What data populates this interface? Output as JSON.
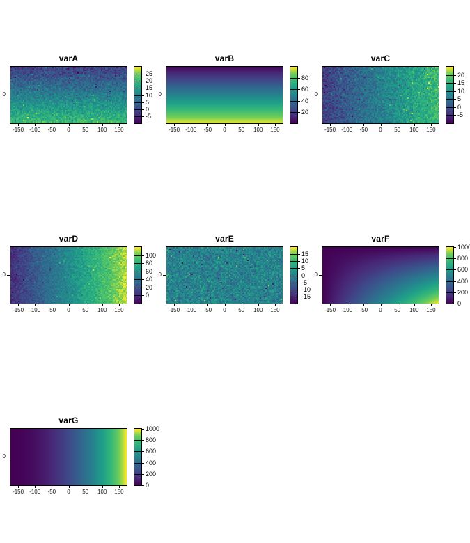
{
  "chart_data": {
    "type": "heatmap",
    "figure_background": "#ffffff",
    "colormap": {
      "name": "viridis",
      "stops": [
        "#440154",
        "#482878",
        "#3e4a89",
        "#31688e",
        "#26828e",
        "#1f9e89",
        "#35b779",
        "#6ece58",
        "#fde725"
      ]
    },
    "x_axis": {
      "tick_labels": [
        "-150",
        "-100",
        "-50",
        "0",
        "50",
        "100",
        "150"
      ],
      "tick_values": [
        -150,
        -100,
        -50,
        0,
        50,
        100,
        150
      ],
      "range": [
        -175,
        175
      ]
    },
    "y_axis": {
      "tick_label": "0"
    },
    "panels": [
      {
        "id": "varA",
        "title": "varA",
        "row": 0,
        "col": 0,
        "type": "heatmap",
        "color_range": [
          -10,
          30
        ],
        "colorbar_ticks": [
          25,
          20,
          15,
          10,
          5,
          0,
          -5
        ],
        "field": {
          "kind": "vgrad",
          "from": -2,
          "to": 21,
          "noise": 6
        },
        "description": "noisy vertical gradient, low (dark) at top to ~20-25 (green-yellow) at bottom"
      },
      {
        "id": "varB",
        "title": "varB",
        "row": 0,
        "col": 1,
        "type": "heatmap",
        "color_range": [
          0,
          100
        ],
        "colorbar_ticks": [
          80,
          60,
          40,
          20
        ],
        "field": {
          "kind": "vgrad",
          "from": 2,
          "to": 98,
          "noise": 0
        },
        "description": "smooth vertical gradient, ~0 (dark purple) at top to ~100 (yellow) at bottom"
      },
      {
        "id": "varC",
        "title": "varC",
        "row": 0,
        "col": 2,
        "type": "heatmap",
        "color_range": [
          -10,
          25
        ],
        "colorbar_ticks": [
          20,
          15,
          10,
          5,
          0,
          -5
        ],
        "field": {
          "kind": "hgrad",
          "from": -3,
          "to": 17,
          "noise": 5.5
        },
        "description": "noisy horizontal gradient, low (dark) at left to ~17-20 (green-yellow) at right"
      },
      {
        "id": "varD",
        "title": "varD",
        "row": 1,
        "col": 0,
        "type": "heatmap",
        "color_range": [
          -20,
          120
        ],
        "colorbar_ticks": [
          100,
          80,
          60,
          40,
          20,
          0
        ],
        "field": {
          "kind": "hgrad",
          "from": 0,
          "to": 112,
          "noise": 15
        },
        "description": "noisy horizontal gradient, ~0 (dark purple) at left to ~110 (yellow) at right"
      },
      {
        "id": "varE",
        "title": "varE",
        "row": 1,
        "col": 1,
        "type": "heatmap",
        "color_range": [
          -20,
          20
        ],
        "colorbar_ticks": [
          15,
          10,
          5,
          0,
          -5,
          -10,
          -15
        ],
        "field": {
          "kind": "noise",
          "from": 0,
          "to": 0,
          "noise": 8.5
        },
        "description": "pure noise centered at 0 (teal) with speckles toward -15 and +15"
      },
      {
        "id": "varF",
        "title": "varF",
        "row": 1,
        "col": 2,
        "type": "heatmap",
        "color_range": [
          0,
          1000
        ],
        "colorbar_ticks": [
          1000,
          800,
          600,
          400,
          200,
          0
        ],
        "field": {
          "kind": "product",
          "from": 0,
          "to": 1000,
          "noise": 0
        },
        "description": "smooth 2D gradient, ~0 (dark purple) at top-left rising to ~1000 (yellow) at bottom-right corner"
      },
      {
        "id": "varG",
        "title": "varG",
        "row": 2,
        "col": 0,
        "type": "heatmap",
        "color_range": [
          0,
          1000
        ],
        "colorbar_ticks": [
          1000,
          800,
          600,
          400,
          200,
          0
        ],
        "field": {
          "kind": "hpow",
          "from": 0,
          "to": 1000,
          "noise": 0,
          "power": 2
        },
        "description": "smooth nonlinear horizontal gradient, 0 (dark purple) at left rising quadratically to 1000 (yellow) at right"
      }
    ]
  }
}
